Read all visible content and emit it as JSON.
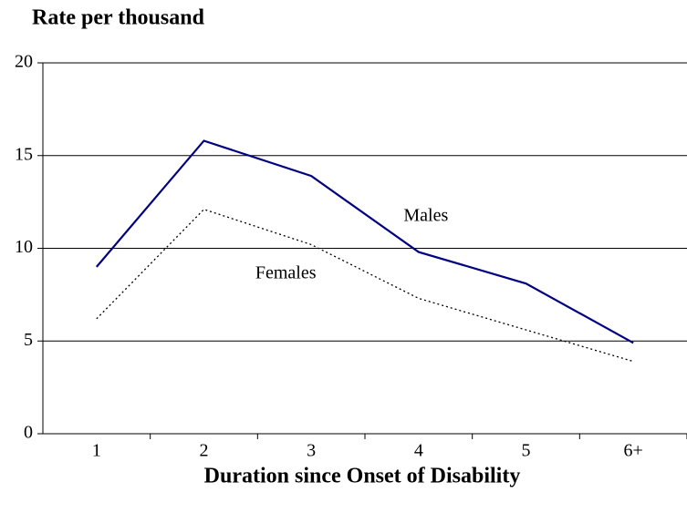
{
  "chart_data": {
    "type": "line",
    "title": "Rate per thousand",
    "x_label": "Duration since Onset of Disability",
    "categories": [
      "1",
      "2",
      "3",
      "4",
      "5",
      "6+"
    ],
    "series": [
      {
        "name": "Males",
        "color": "#000080",
        "style": "solid",
        "values": [
          9.0,
          15.8,
          13.9,
          9.8,
          8.1,
          4.9
        ]
      },
      {
        "name": "Females",
        "color": "#000000",
        "style": "dotted",
        "values": [
          6.2,
          12.1,
          10.2,
          7.3,
          5.6,
          3.9
        ]
      }
    ],
    "ylim": [
      0,
      20
    ],
    "yticks": [
      0,
      5,
      10,
      15,
      20
    ],
    "grid": true
  }
}
